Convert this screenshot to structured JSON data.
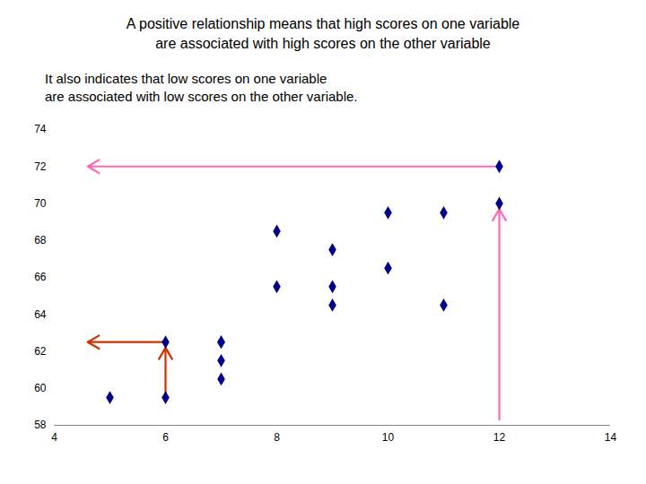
{
  "chart_data": {
    "type": "scatter",
    "title": [
      "A positive relationship means that high scores on one variable",
      "are associated with high scores on the other variable"
    ],
    "subtitle": [
      "It also indicates that low scores on one variable",
      "are associated with low scores on the other variable."
    ],
    "x": [
      5,
      6,
      6,
      7,
      7,
      7,
      7,
      8,
      8,
      9,
      9,
      9,
      10,
      10,
      11,
      11,
      12,
      12
    ],
    "values": [
      59.5,
      59.5,
      62.5,
      62.5,
      61.5,
      60.5,
      62.5,
      68.5,
      65.5,
      67.5,
      65.5,
      64.5,
      66.5,
      69.5,
      69.5,
      64.5,
      72,
      70
    ],
    "color": "#00008B",
    "marker": "diamond",
    "xlim": [
      4,
      14
    ],
    "ylim": [
      58,
      74
    ],
    "xticks": [
      4,
      6,
      8,
      10,
      12,
      14
    ],
    "yticks": [
      58,
      60,
      62,
      64,
      66,
      68,
      70,
      72,
      74
    ],
    "grid": false,
    "arrows": [
      {
        "x1": 12,
        "y1": 72,
        "x2": 4.6,
        "y2": 72,
        "color": "#FF69B4"
      },
      {
        "x1": 12,
        "y1": 58.3,
        "x2": 12,
        "y2": 69.7,
        "color": "#FF69B4"
      },
      {
        "x1": 6,
        "y1": 62.5,
        "x2": 4.6,
        "y2": 62.5,
        "color": "#CC3300"
      },
      {
        "x1": 6,
        "y1": 59.5,
        "x2": 6,
        "y2": 62.2,
        "color": "#CC3300"
      }
    ]
  }
}
